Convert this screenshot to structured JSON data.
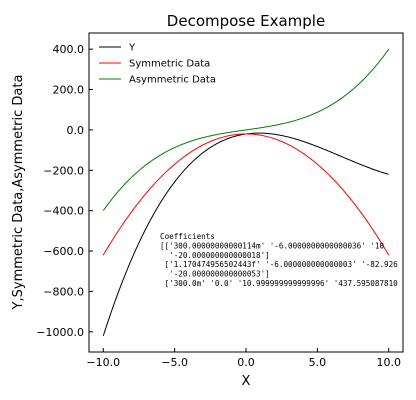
{
  "chart_data": {
    "type": "line",
    "title": "Decompose Example",
    "xlabel": "X",
    "ylabel": "Y,Symmetric Data,Asymmetric Data",
    "xlim": [
      -11,
      11
    ],
    "ylim": [
      -1100,
      480
    ],
    "xticks": [
      -10,
      -5,
      0,
      5,
      10
    ],
    "xtick_labels": [
      "−10.0",
      "−5.0",
      "0.0",
      "5.0",
      "10.0"
    ],
    "yticks": [
      -1000,
      -800,
      -600,
      -400,
      -200,
      0,
      200,
      400
    ],
    "ytick_labels": [
      "−1000.0",
      "−800.0",
      "−600.0",
      "−400.0",
      "−200.0",
      "0.0",
      "200.0",
      "400.0"
    ],
    "grid": false,
    "legend_position": "top-left",
    "series": [
      {
        "name": "Y",
        "color": "#000000",
        "poly": [
          -20,
          10,
          -6,
          0.3
        ]
      },
      {
        "name": "Symmetric Data",
        "color": "#ff0000",
        "poly": [
          -20,
          0,
          -6,
          0
        ]
      },
      {
        "name": "Asymmetric Data",
        "color": "#008000",
        "poly": [
          0,
          10,
          0,
          0.3
        ]
      }
    ],
    "annotation": {
      "lines": [
        "Coefficients",
        "[['300.00000000000114m' '-6.0000000000000036' '10",
        "  '-20.000000000000018']",
        " ['1.170474956502443f' '-6.000000000000003' '-82.926",
        "  '-20.000000000000053']",
        " ['300.0m' '0.0' '10.999999999999996' '437.595087810"
      ]
    }
  }
}
